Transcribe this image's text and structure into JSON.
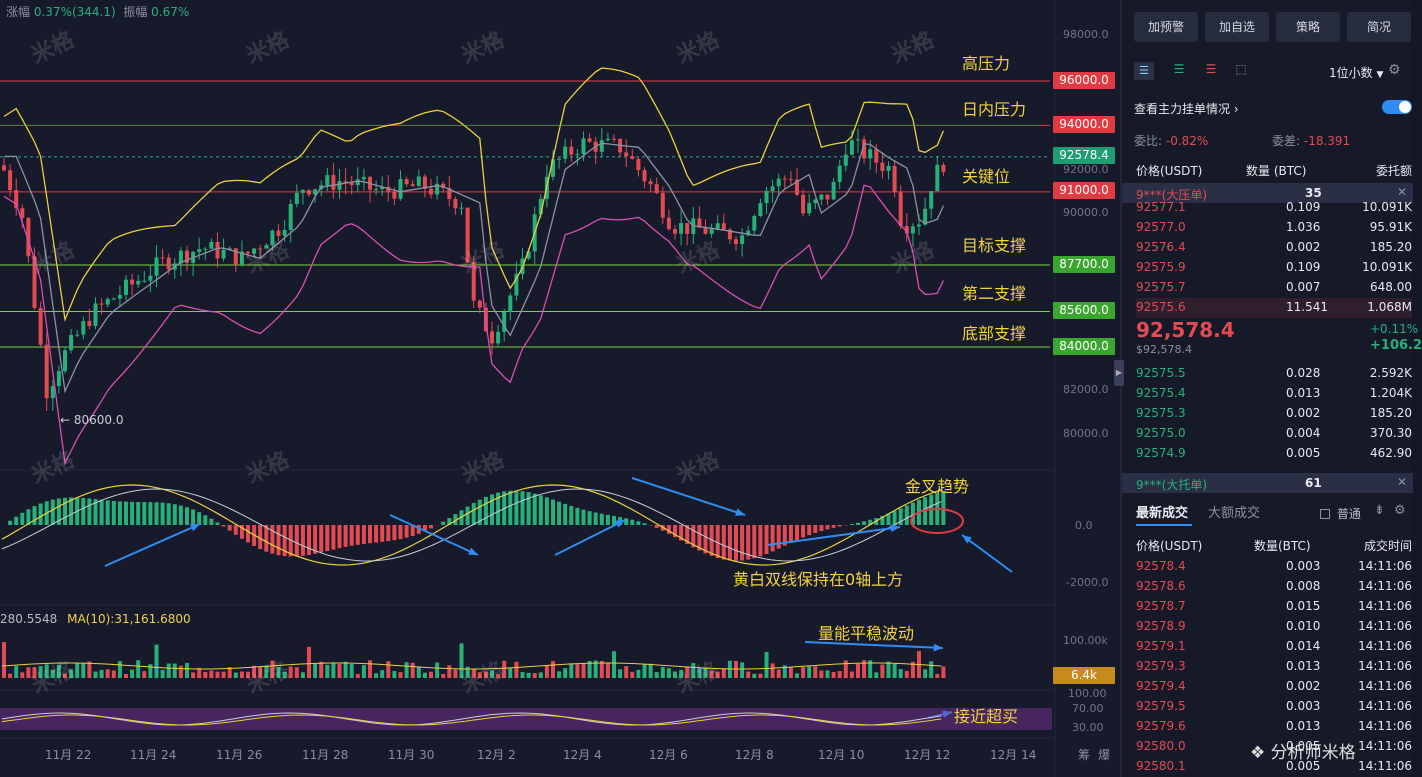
{
  "header": {
    "change_label": "涨幅",
    "change_value": "0.37%(344.1)",
    "amp_label": "振幅",
    "amp_value": "0.67%"
  },
  "annotations": {
    "high_pressure": "高压力",
    "intraday_pressure": "日内压力",
    "key_level": "关键位",
    "target_support": "目标支撑",
    "second_support": "第二支撑",
    "bottom_support": "底部支撑",
    "golden_cross": "金叉趋势",
    "macd_note": "黄白双线保持在0轴上方",
    "volume_note": "量能平稳波动",
    "rsi_note": "接近超买",
    "low_marker": "← 80600.0"
  },
  "price_levels": [
    {
      "price": "96000.0",
      "kind": "resistance"
    },
    {
      "price": "94000.0",
      "kind": "resistance"
    },
    {
      "price": "92578.4",
      "kind": "current"
    },
    {
      "price": "91000.0",
      "kind": "resistance"
    },
    {
      "price": "87700.0",
      "kind": "support"
    },
    {
      "price": "85600.0",
      "kind": "support"
    },
    {
      "price": "84000.0",
      "kind": "support"
    }
  ],
  "price_axis": [
    "98000.0",
    "92000.0",
    "90000.0",
    "82000.0",
    "80000.0"
  ],
  "macd_axis": [
    "0.0",
    "-2000.0"
  ],
  "volume_axis": {
    "top": "100.00k",
    "tag": "6.4k"
  },
  "volume_info": {
    "partial": "280.5548",
    "ma": "MA(10):31,161.6800"
  },
  "rsi_axis": [
    "100.00",
    "70.00",
    "30.00"
  ],
  "date_axis": [
    "11月 22",
    "11月 24",
    "11月 26",
    "11月 28",
    "11月 30",
    "12月 2",
    "12月 4",
    "12月 6",
    "12月 8",
    "12月 10",
    "12月 12",
    "12月 14"
  ],
  "corner_labels": [
    "筹",
    "爆"
  ],
  "watermark": "米格",
  "brand_watermark": "分析师米格",
  "panel": {
    "buttons": [
      "加预警",
      "加自选",
      "策略",
      "简况"
    ],
    "decimal_select": "1位小数",
    "depth_title": "查看主力挂单情况",
    "ratio_label": "委比:",
    "ratio_value": "-0.82%",
    "diff_label": "委差:",
    "diff_value": "-18.391",
    "book_headers": [
      "价格(USDT)",
      "数量 (BTC)",
      "委托额"
    ],
    "ask_big_label": "9***(大压单)",
    "ask_big_value": "35",
    "asks": [
      [
        "92577.1",
        "0.109",
        "10.091K"
      ],
      [
        "92577.0",
        "1.036",
        "95.91K"
      ],
      [
        "92576.4",
        "0.002",
        "185.20"
      ],
      [
        "92575.9",
        "0.109",
        "10.091K"
      ],
      [
        "92575.7",
        "0.007",
        "648.00"
      ],
      [
        "92575.6",
        "11.541",
        "1.068M"
      ]
    ],
    "last_price": "92,578.4",
    "last_price_usd": "$92,578.4",
    "pct_change": "+0.11%",
    "abs_change": "+106.2",
    "bids": [
      [
        "92575.5",
        "0.028",
        "2.592K"
      ],
      [
        "92575.4",
        "0.013",
        "1.204K"
      ],
      [
        "92575.3",
        "0.002",
        "185.20"
      ],
      [
        "92575.0",
        "0.004",
        "370.30"
      ],
      [
        "92574.9",
        "0.005",
        "462.90"
      ]
    ],
    "bid_big_label": "9***(大托单)",
    "bid_big_value": "61",
    "trade_tabs": [
      "最新成交",
      "大额成交"
    ],
    "normal_label": "普通",
    "trade_headers": [
      "价格(USDT)",
      "数量(BTC)",
      "成交时间"
    ],
    "trades": [
      [
        "92578.4",
        "0.003",
        "14:11:06"
      ],
      [
        "92578.6",
        "0.008",
        "14:11:06"
      ],
      [
        "92578.7",
        "0.015",
        "14:11:06"
      ],
      [
        "92578.9",
        "0.010",
        "14:11:06"
      ],
      [
        "92579.1",
        "0.014",
        "14:11:06"
      ],
      [
        "92579.3",
        "0.013",
        "14:11:06"
      ],
      [
        "92579.4",
        "0.002",
        "14:11:06"
      ],
      [
        "92579.5",
        "0.003",
        "14:11:06"
      ],
      [
        "92579.6",
        "0.013",
        "14:11:06"
      ],
      [
        "92580.0",
        "0.005",
        "14:11:06"
      ],
      [
        "92580.1",
        "0.005",
        "14:11:06"
      ]
    ]
  },
  "colors": {
    "up": "#26b07a",
    "down": "#e34b52",
    "accent": "#f1d23f",
    "bg": "#161a2b"
  }
}
